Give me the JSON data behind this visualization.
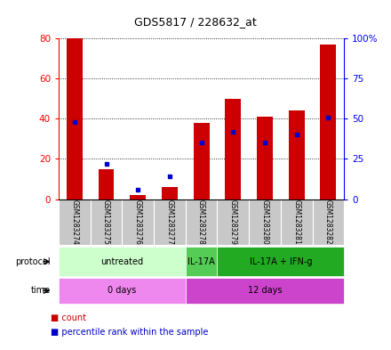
{
  "title": "GDS5817 / 228632_at",
  "samples": [
    "GSM1283274",
    "GSM1283275",
    "GSM1283276",
    "GSM1283277",
    "GSM1283278",
    "GSM1283279",
    "GSM1283280",
    "GSM1283281",
    "GSM1283282"
  ],
  "count_values": [
    80,
    15,
    2,
    6,
    38,
    50,
    41,
    44,
    77
  ],
  "percentile_values": [
    48,
    22,
    6,
    14,
    35,
    42,
    35,
    40,
    51
  ],
  "left_ylim": [
    0,
    80
  ],
  "right_ylim": [
    0,
    100
  ],
  "left_yticks": [
    0,
    20,
    40,
    60,
    80
  ],
  "right_yticks": [
    0,
    25,
    50,
    75,
    100
  ],
  "right_yticklabels": [
    "0",
    "25",
    "50",
    "75",
    "100%"
  ],
  "bar_color": "#cc0000",
  "dot_color": "#0000cc",
  "protocol_info": [
    [
      0,
      4,
      "#ccffcc",
      "untreated"
    ],
    [
      4,
      5,
      "#55cc55",
      "IL-17A"
    ],
    [
      5,
      9,
      "#22aa22",
      "IL-17A + IFN-g"
    ]
  ],
  "time_info": [
    [
      0,
      4,
      "#ee88ee",
      "0 days"
    ],
    [
      4,
      9,
      "#cc44cc",
      "12 days"
    ]
  ],
  "legend_count_label": "count",
  "legend_percentile_label": "percentile rank within the sample",
  "grid_color": "black"
}
